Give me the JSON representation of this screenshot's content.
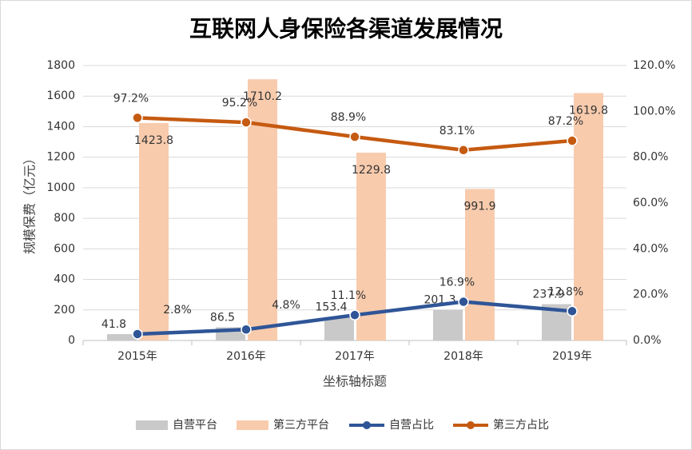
{
  "chart_data": {
    "type": "bar-line",
    "title": "互联网人身保险各渠道发展情况",
    "x_label": "坐标轴标题",
    "y_label": "规模保费（亿元）",
    "categories": [
      "2015年",
      "2016年",
      "2017年",
      "2018年",
      "2019年"
    ],
    "series": [
      {
        "name": "自营平台",
        "type": "bar",
        "color": "#c9c9c9",
        "values": [
          41.8,
          86.5,
          153.4,
          201.3,
          237.9
        ]
      },
      {
        "name": "第三方平台",
        "type": "bar",
        "color": "#f8cbad",
        "values": [
          1423.8,
          1710.2,
          1229.8,
          991.9,
          1619.8
        ]
      },
      {
        "name": "自营占比",
        "type": "line",
        "axis": "y2",
        "color": "#2f5597",
        "values": [
          2.8,
          4.8,
          11.1,
          16.9,
          12.8
        ],
        "value_labels": [
          "2.8%",
          "4.8%",
          "11.1%",
          "16.9%",
          "12.8%"
        ]
      },
      {
        "name": "第三方占比",
        "type": "line",
        "axis": "y2",
        "color": "#c55a11",
        "values": [
          97.2,
          95.2,
          88.9,
          83.1,
          87.2
        ],
        "value_labels": [
          "97.2%",
          "95.2%",
          "88.9%",
          "83.1%",
          "87.2%"
        ]
      }
    ],
    "ylim": [
      0,
      1800
    ],
    "yticks": [
      0,
      200,
      400,
      600,
      800,
      1000,
      1200,
      1400,
      1600,
      1800
    ],
    "y2lim": [
      0,
      120
    ],
    "y2ticks": [
      {
        "value": 0,
        "label": "0.0%"
      },
      {
        "value": 20,
        "label": "20.0%"
      },
      {
        "value": 40,
        "label": "40.0%"
      },
      {
        "value": 60,
        "label": "60.0%"
      },
      {
        "value": 80,
        "label": "80.0%"
      },
      {
        "value": 100,
        "label": "100.0%"
      },
      {
        "value": 120,
        "label": "120.0%"
      }
    ],
    "grid": true,
    "legend": "bottom"
  }
}
